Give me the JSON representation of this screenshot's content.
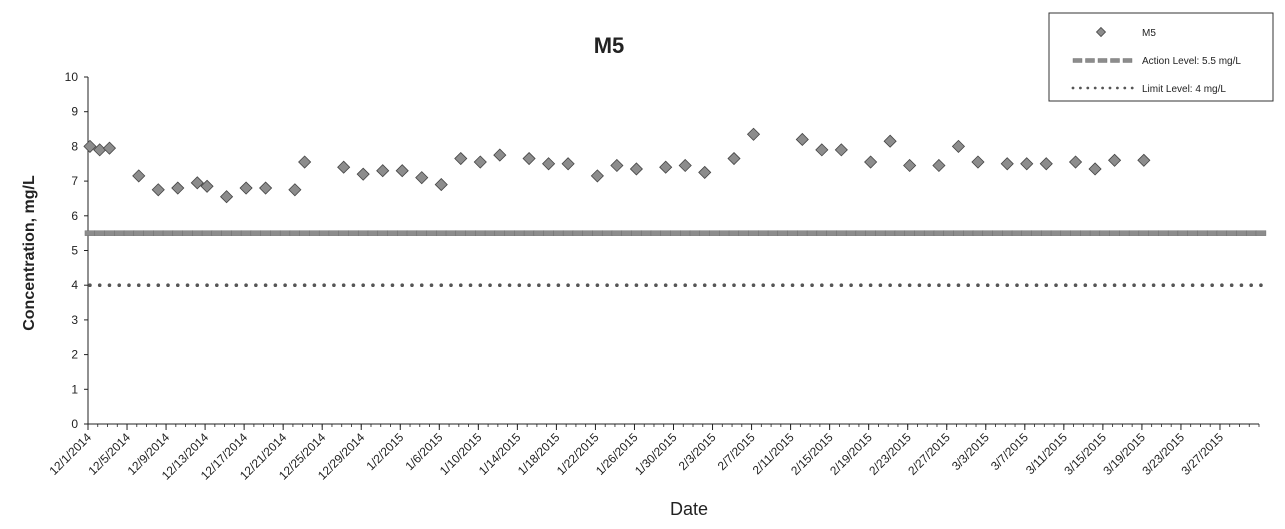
{
  "chart_data": {
    "type": "scatter",
    "title": "M5",
    "xlabel": "Date",
    "ylabel": "Concentration, mg/L",
    "ylim": [
      0,
      10
    ],
    "y_ticks": [
      0,
      1,
      2,
      3,
      4,
      5,
      6,
      7,
      8,
      9,
      10
    ],
    "xlim": [
      "2014-12-01",
      "2015-03-31"
    ],
    "x_tick_labels": [
      "12/1/2014",
      "12/5/2014",
      "12/9/2014",
      "12/13/2014",
      "12/17/2014",
      "12/21/2014",
      "12/25/2014",
      "12/29/2014",
      "1/2/2015",
      "1/6/2015",
      "1/10/2015",
      "1/14/2015",
      "1/18/2015",
      "1/22/2015",
      "1/26/2015",
      "1/30/2015",
      "2/3/2015",
      "2/7/2015",
      "2/11/2015",
      "2/15/2015",
      "2/19/2015",
      "2/23/2015",
      "2/27/2015",
      "3/3/2015",
      "3/7/2015",
      "3/11/2015",
      "3/15/2015",
      "3/19/2015",
      "3/23/2015",
      "3/27/2015"
    ],
    "grid": false,
    "legend_position": "top-right",
    "series": [
      {
        "name": "M5",
        "marker": "diamond",
        "color": "#8c8c8c",
        "points": [
          [
            "2014-12-01",
            8.0
          ],
          [
            "2014-12-02",
            7.9
          ],
          [
            "2014-12-03",
            7.95
          ],
          [
            "2014-12-06",
            7.15
          ],
          [
            "2014-12-08",
            6.75
          ],
          [
            "2014-12-10",
            6.8
          ],
          [
            "2014-12-12",
            6.95
          ],
          [
            "2014-12-13",
            6.85
          ],
          [
            "2014-12-15",
            6.55
          ],
          [
            "2014-12-17",
            6.8
          ],
          [
            "2014-12-19",
            6.8
          ],
          [
            "2014-12-22",
            6.75
          ],
          [
            "2014-12-23",
            7.55
          ],
          [
            "2014-12-27",
            7.4
          ],
          [
            "2014-12-29",
            7.2
          ],
          [
            "2014-12-31",
            7.3
          ],
          [
            "2015-01-02",
            7.3
          ],
          [
            "2015-01-04",
            7.1
          ],
          [
            "2015-01-06",
            6.9
          ],
          [
            "2015-01-08",
            7.65
          ],
          [
            "2015-01-10",
            7.55
          ],
          [
            "2015-01-12",
            7.75
          ],
          [
            "2015-01-15",
            7.65
          ],
          [
            "2015-01-17",
            7.5
          ],
          [
            "2015-01-19",
            7.5
          ],
          [
            "2015-01-22",
            7.15
          ],
          [
            "2015-01-24",
            7.45
          ],
          [
            "2015-01-26",
            7.35
          ],
          [
            "2015-01-29",
            7.4
          ],
          [
            "2015-01-31",
            7.45
          ],
          [
            "2015-02-02",
            7.25
          ],
          [
            "2015-02-05",
            7.65
          ],
          [
            "2015-02-07",
            8.35
          ],
          [
            "2015-02-12",
            8.2
          ],
          [
            "2015-02-14",
            7.9
          ],
          [
            "2015-02-16",
            7.9
          ],
          [
            "2015-02-19",
            7.55
          ],
          [
            "2015-02-21",
            8.15
          ],
          [
            "2015-02-23",
            7.45
          ],
          [
            "2015-02-26",
            7.45
          ],
          [
            "2015-02-28",
            8.0
          ],
          [
            "2015-03-02",
            7.55
          ],
          [
            "2015-03-05",
            7.5
          ],
          [
            "2015-03-07",
            7.5
          ],
          [
            "2015-03-09",
            7.5
          ],
          [
            "2015-03-12",
            7.55
          ],
          [
            "2015-03-14",
            7.35
          ],
          [
            "2015-03-16",
            7.6
          ],
          [
            "2015-03-19",
            7.6
          ]
        ]
      },
      {
        "name": "Action Level: 5.5 mg/L",
        "marker": "dash",
        "color": "#8c8c8c",
        "value": 5.5
      },
      {
        "name": "Limit Level: 4 mg/L",
        "marker": "dot",
        "color": "#555555",
        "value": 4
      }
    ]
  }
}
